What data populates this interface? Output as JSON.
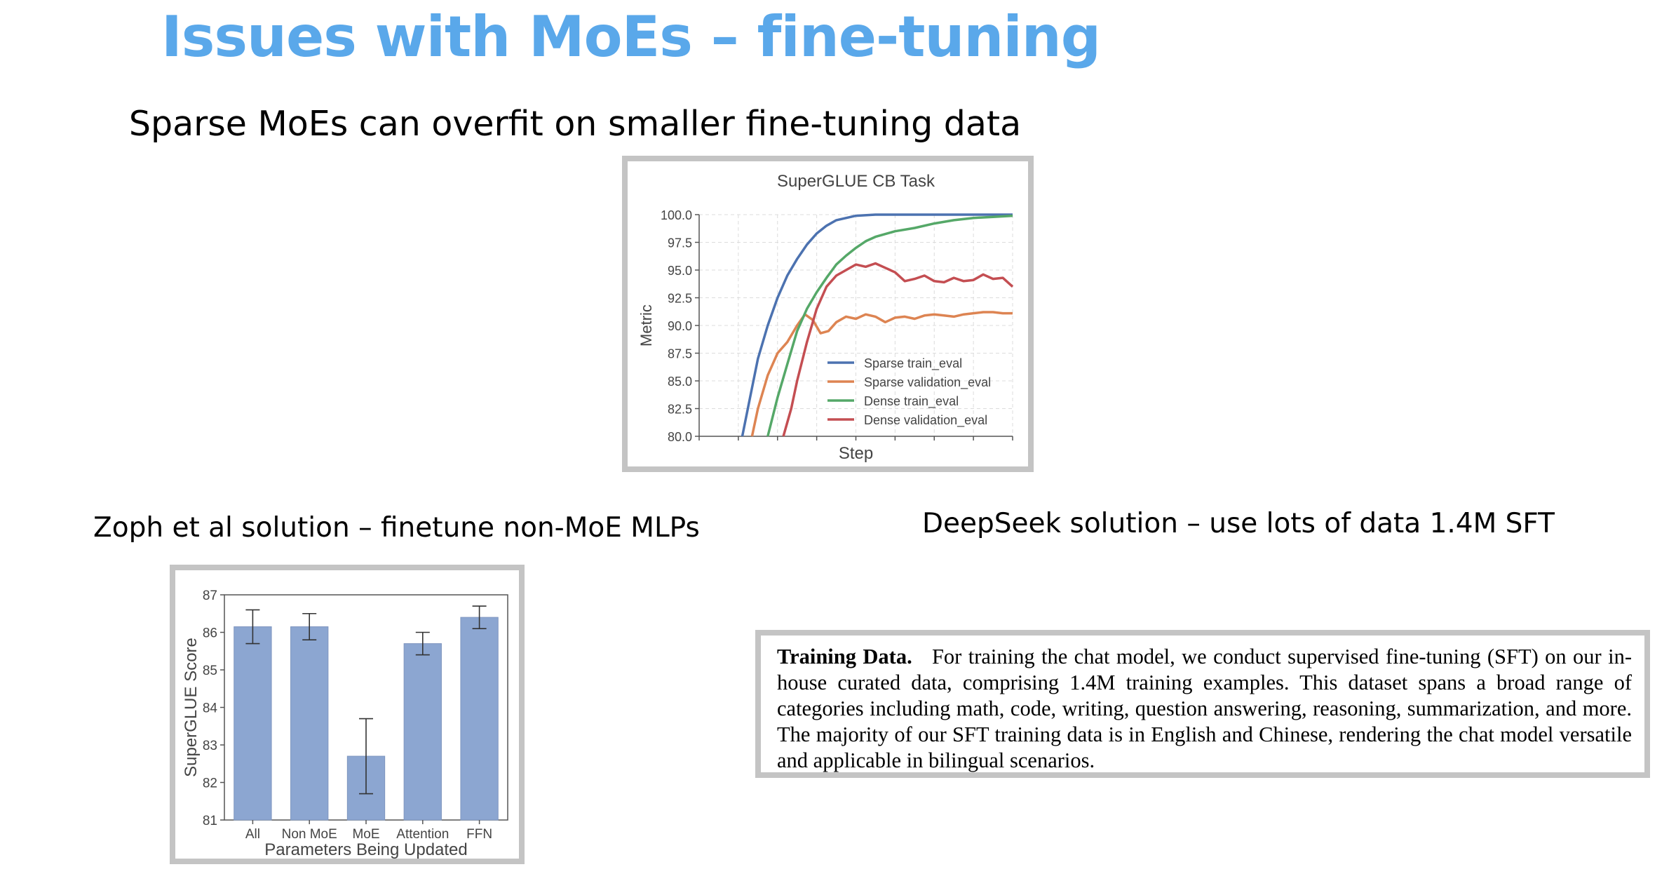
{
  "slide": {
    "title": "Issues with MoEs – fine-tuning",
    "subtitle": "Sparse MoEs can overfit on smaller fine-tuning data",
    "left_caption": "Zoph et al solution – finetune non-MoE MLPs",
    "right_caption": "DeepSeek solution – use lots of data 1.4M SFT"
  },
  "training_data": {
    "heading": "Training Data.",
    "body": "For training the chat model, we conduct supervised fine-tuning (SFT) on our in-house curated data, comprising 1.4M training examples. This dataset spans a broad range of categories including math, code, writing, question answering, reasoning, summarization, and more. The majority of our SFT training data is in English and Chinese, rendering the chat model versatile and applicable in bilingual scenarios."
  },
  "chart_data": [
    {
      "type": "line",
      "title": "SuperGLUE CB Task",
      "xlabel": "Step",
      "ylabel": "Metric",
      "ylim": [
        80.0,
        100.0
      ],
      "yticks": [
        "80.0",
        "82.5",
        "85.0",
        "87.5",
        "90.0",
        "92.5",
        "95.0",
        "97.5",
        "100.0"
      ],
      "xlim": [
        0,
        16
      ],
      "grid": true,
      "legend": "bottom-right",
      "series": [
        {
          "name": "Sparse train_eval",
          "color": "#4c72b0",
          "x": [
            2.2,
            2.6,
            3.0,
            3.5,
            4.0,
            4.5,
            5.0,
            5.5,
            6.0,
            6.5,
            7.0,
            8.0,
            9.0,
            10.0,
            12.0,
            14.0,
            16.0
          ],
          "y": [
            80.0,
            83.5,
            87.0,
            90.0,
            92.5,
            94.5,
            96.0,
            97.3,
            98.3,
            99.0,
            99.5,
            99.9,
            100.0,
            100.0,
            100.0,
            100.0,
            100.0
          ]
        },
        {
          "name": "Sparse validation_eval",
          "color": "#dd8452",
          "x": [
            2.7,
            3.0,
            3.5,
            4.0,
            4.5,
            5.0,
            5.4,
            5.8,
            6.2,
            6.6,
            7.0,
            7.5,
            8.0,
            8.5,
            9.0,
            9.5,
            10.0,
            10.5,
            11.0,
            11.5,
            12.0,
            12.5,
            13.0,
            13.5,
            14.0,
            14.5,
            15.0,
            15.5,
            16.0
          ],
          "y": [
            80.0,
            82.5,
            85.5,
            87.5,
            88.5,
            90.0,
            91.0,
            90.5,
            89.3,
            89.5,
            90.3,
            90.8,
            90.6,
            91.0,
            90.8,
            90.3,
            90.7,
            90.8,
            90.6,
            90.9,
            91.0,
            90.9,
            90.8,
            91.0,
            91.1,
            91.2,
            91.2,
            91.1,
            91.1
          ]
        },
        {
          "name": "Dense train_eval",
          "color": "#55a868",
          "x": [
            3.5,
            4.0,
            4.5,
            5.0,
            5.5,
            6.0,
            6.5,
            7.0,
            7.5,
            8.0,
            8.5,
            9.0,
            10.0,
            11.0,
            12.0,
            13.0,
            14.0,
            15.0,
            16.0
          ],
          "y": [
            80.0,
            83.5,
            86.5,
            89.5,
            91.5,
            93.0,
            94.3,
            95.5,
            96.3,
            97.0,
            97.6,
            98.0,
            98.5,
            98.8,
            99.2,
            99.5,
            99.7,
            99.8,
            99.9
          ]
        },
        {
          "name": "Dense validation_eval",
          "color": "#c44e52",
          "x": [
            4.3,
            4.7,
            5.0,
            5.5,
            6.0,
            6.5,
            7.0,
            7.5,
            8.0,
            8.5,
            9.0,
            9.5,
            10.0,
            10.5,
            11.0,
            11.5,
            12.0,
            12.5,
            13.0,
            13.5,
            14.0,
            14.5,
            15.0,
            15.5,
            16.0
          ],
          "y": [
            80.0,
            82.5,
            85.0,
            88.5,
            91.5,
            93.5,
            94.5,
            95.0,
            95.5,
            95.3,
            95.6,
            95.2,
            94.8,
            94.0,
            94.2,
            94.5,
            94.0,
            93.9,
            94.3,
            94.0,
            94.1,
            94.6,
            94.2,
            94.3,
            93.5
          ]
        }
      ]
    },
    {
      "type": "bar",
      "xlabel": "Parameters Being Updated",
      "ylabel": "SuperGLUE Score",
      "ylim": [
        81,
        87
      ],
      "yticks": [
        "81",
        "82",
        "83",
        "84",
        "85",
        "86",
        "87"
      ],
      "color": "#8ca6d1",
      "categories": [
        "All",
        "Non MoE",
        "MoE",
        "Attention",
        "FFN"
      ],
      "values": [
        86.15,
        86.15,
        82.7,
        85.7,
        86.4
      ],
      "error_low": [
        85.7,
        85.8,
        81.7,
        85.4,
        86.1
      ],
      "error_high": [
        86.6,
        86.5,
        83.7,
        86.0,
        86.7
      ]
    }
  ]
}
